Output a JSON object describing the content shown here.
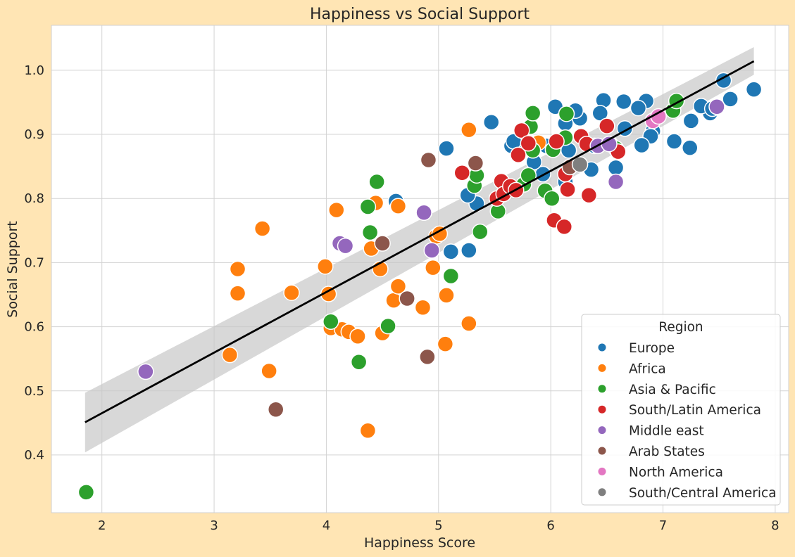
{
  "chart_data": {
    "type": "scatter",
    "title": "Happiness vs Social Support",
    "xlabel": "Happiness Score",
    "ylabel": "Social Support",
    "xlim": [
      1.55,
      8.12
    ],
    "ylim": [
      0.31,
      1.07
    ],
    "xticks": [
      2,
      3,
      4,
      5,
      6,
      7,
      8
    ],
    "yticks": [
      0.4,
      0.5,
      0.6,
      0.7,
      0.8,
      0.9,
      1.0
    ],
    "grid": true,
    "legend": {
      "title": "Region",
      "placement": "lower-right"
    },
    "regression": {
      "line": [
        [
          1.85,
          0.451
        ],
        [
          7.81,
          1.014
        ]
      ],
      "ci_upper": [
        [
          1.85,
          0.497
        ],
        [
          7.81,
          1.036
        ]
      ],
      "ci_lower": [
        [
          1.85,
          0.404
        ],
        [
          7.81,
          0.993
        ]
      ]
    },
    "series": [
      {
        "name": "Europe",
        "color": "#1f77b4",
        "points": [
          [
            7.81,
            0.97
          ],
          [
            7.54,
            0.984
          ],
          [
            7.6,
            0.955
          ],
          [
            7.42,
            0.933
          ],
          [
            7.34,
            0.944
          ],
          [
            7.25,
            0.921
          ],
          [
            7.24,
            0.879
          ],
          [
            7.1,
            0.889
          ],
          [
            6.91,
            0.905
          ],
          [
            6.89,
            0.897
          ],
          [
            6.85,
            0.952
          ],
          [
            6.81,
            0.883
          ],
          [
            6.78,
            0.941
          ],
          [
            6.66,
            0.909
          ],
          [
            6.65,
            0.951
          ],
          [
            6.58,
            0.848
          ],
          [
            6.47,
            0.953
          ],
          [
            6.44,
            0.933
          ],
          [
            6.39,
            0.882
          ],
          [
            6.36,
            0.845
          ],
          [
            6.26,
            0.925
          ],
          [
            6.22,
            0.937
          ],
          [
            6.16,
            0.875
          ],
          [
            6.13,
            0.917
          ],
          [
            6.13,
            0.826
          ],
          [
            6.04,
            0.943
          ],
          [
            5.96,
            0.882
          ],
          [
            5.93,
            0.838
          ],
          [
            5.85,
            0.857
          ],
          [
            5.71,
            0.891
          ],
          [
            5.65,
            0.882
          ],
          [
            5.67,
            0.889
          ],
          [
            5.47,
            0.919
          ],
          [
            5.34,
            0.792
          ],
          [
            5.26,
            0.805
          ],
          [
            5.07,
            0.878
          ],
          [
            5.11,
            0.717
          ],
          [
            5.27,
            0.719
          ],
          [
            4.62,
            0.796
          ],
          [
            7.44,
            0.94
          ]
        ]
      },
      {
        "name": "Africa",
        "color": "#ff7f0e",
        "points": [
          [
            3.43,
            0.753
          ],
          [
            3.21,
            0.69
          ],
          [
            3.21,
            0.652
          ],
          [
            3.14,
            0.556
          ],
          [
            3.49,
            0.531
          ],
          [
            3.69,
            0.653
          ],
          [
            3.99,
            0.694
          ],
          [
            4.02,
            0.651
          ],
          [
            4.04,
            0.598
          ],
          [
            4.09,
            0.782
          ],
          [
            4.14,
            0.596
          ],
          [
            4.2,
            0.592
          ],
          [
            4.28,
            0.585
          ],
          [
            4.37,
            0.438
          ],
          [
            4.4,
            0.722
          ],
          [
            4.44,
            0.793
          ],
          [
            4.48,
            0.69
          ],
          [
            4.5,
            0.59
          ],
          [
            4.6,
            0.641
          ],
          [
            4.64,
            0.663
          ],
          [
            4.64,
            0.788
          ],
          [
            4.86,
            0.63
          ],
          [
            4.95,
            0.692
          ],
          [
            4.98,
            0.741
          ],
          [
            5.01,
            0.745
          ],
          [
            5.06,
            0.573
          ],
          [
            5.07,
            0.649
          ],
          [
            5.27,
            0.605
          ],
          [
            5.27,
            0.907
          ],
          [
            5.89,
            0.887
          ]
        ]
      },
      {
        "name": "Asia & Pacific",
        "color": "#2ca02c",
        "points": [
          [
            1.86,
            0.342
          ],
          [
            4.04,
            0.608
          ],
          [
            4.29,
            0.545
          ],
          [
            4.37,
            0.787
          ],
          [
            4.39,
            0.747
          ],
          [
            4.45,
            0.826
          ],
          [
            4.55,
            0.601
          ],
          [
            5.11,
            0.679
          ],
          [
            5.32,
            0.82
          ],
          [
            5.34,
            0.836
          ],
          [
            5.37,
            0.748
          ],
          [
            5.53,
            0.78
          ],
          [
            5.76,
            0.822
          ],
          [
            5.8,
            0.836
          ],
          [
            5.82,
            0.912
          ],
          [
            5.84,
            0.933
          ],
          [
            5.84,
            0.875
          ],
          [
            5.95,
            0.812
          ],
          [
            6.01,
            0.8
          ],
          [
            6.02,
            0.876
          ],
          [
            6.13,
            0.895
          ],
          [
            6.14,
            0.932
          ],
          [
            6.53,
            0.885
          ],
          [
            6.58,
            0.878
          ],
          [
            7.09,
            0.937
          ],
          [
            7.12,
            0.952
          ]
        ]
      },
      {
        "name": "South/Latin America",
        "color": "#d62728",
        "points": [
          [
            5.21,
            0.84
          ],
          [
            5.52,
            0.8
          ],
          [
            5.56,
            0.827
          ],
          [
            5.58,
            0.807
          ],
          [
            5.64,
            0.819
          ],
          [
            5.69,
            0.813
          ],
          [
            5.71,
            0.868
          ],
          [
            5.74,
            0.906
          ],
          [
            5.8,
            0.886
          ],
          [
            6.03,
            0.766
          ],
          [
            6.05,
            0.889
          ],
          [
            6.12,
            0.756
          ],
          [
            6.13,
            0.838
          ],
          [
            6.15,
            0.814
          ],
          [
            6.27,
            0.897
          ],
          [
            6.32,
            0.885
          ],
          [
            6.34,
            0.805
          ],
          [
            6.5,
            0.913
          ],
          [
            6.6,
            0.873
          ]
        ]
      },
      {
        "name": "Middle east",
        "color": "#9467bd",
        "points": [
          [
            2.39,
            0.53
          ],
          [
            4.12,
            0.73
          ],
          [
            4.17,
            0.726
          ],
          [
            4.87,
            0.778
          ],
          [
            4.94,
            0.719
          ],
          [
            6.42,
            0.882
          ],
          [
            6.52,
            0.885
          ],
          [
            6.58,
            0.826
          ],
          [
            7.48,
            0.943
          ]
        ]
      },
      {
        "name": "Arab States",
        "color": "#8c564b",
        "points": [
          [
            3.55,
            0.471
          ],
          [
            4.5,
            0.73
          ],
          [
            4.72,
            0.644
          ],
          [
            4.9,
            0.553
          ],
          [
            4.91,
            0.86
          ],
          [
            5.33,
            0.855
          ],
          [
            6.17,
            0.849
          ]
        ]
      },
      {
        "name": "North America",
        "color": "#e377c2",
        "points": [
          [
            6.91,
            0.921
          ],
          [
            6.96,
            0.928
          ]
        ]
      },
      {
        "name": "South/Central America",
        "color": "#7f7f7f",
        "points": [
          [
            6.26,
            0.853
          ]
        ]
      }
    ]
  }
}
